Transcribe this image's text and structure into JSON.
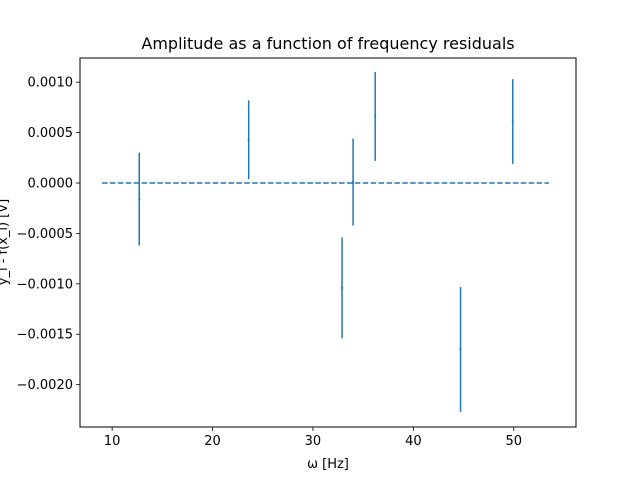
{
  "chart_data": {
    "type": "errorbar",
    "title": "Amplitude as a function of  frequency residuals",
    "xlabel": "ω [Hz]",
    "ylabel": "y_i - f(x_i) [V]",
    "xlim": [
      6.8,
      56.2
    ],
    "ylim": [
      -0.00242,
      0.00124
    ],
    "x_ticks": [
      10,
      20,
      30,
      40,
      50
    ],
    "x_tick_labels": [
      "10",
      "20",
      "30",
      "40",
      "50"
    ],
    "y_ticks": [
      0.001,
      0.0005,
      0.0,
      -0.0005,
      -0.001,
      -0.0015,
      -0.002
    ],
    "y_tick_labels": [
      "0.0010",
      "0.0005",
      "0.0000",
      "−0.0005",
      "−0.0010",
      "−0.0015",
      "−0.0020"
    ],
    "grid": false,
    "color": "#1f77b4",
    "points": [
      {
        "x": 12.7,
        "y": -0.00016,
        "yerr": 0.00046
      },
      {
        "x": 23.6,
        "y": 0.00043,
        "yerr": 0.00039
      },
      {
        "x": 32.9,
        "y": -0.00104,
        "yerr": 0.0005
      },
      {
        "x": 34.0,
        "y": 1e-05,
        "yerr": 0.00043
      },
      {
        "x": 36.2,
        "y": 0.00066,
        "yerr": 0.00044
      },
      {
        "x": 44.7,
        "y": -0.00165,
        "yerr": 0.00062
      },
      {
        "x": 49.9,
        "y": 0.00061,
        "yerr": 0.00042
      }
    ],
    "zero_line": {
      "x": [
        9.0,
        53.5
      ],
      "y": 0.0,
      "style": "dashed"
    }
  }
}
